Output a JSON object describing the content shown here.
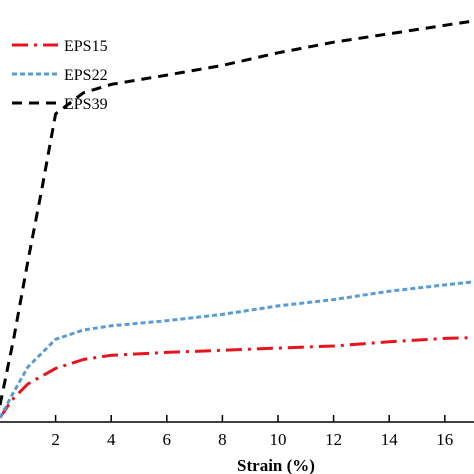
{
  "chart_data": {
    "type": "line",
    "xlabel": "Strain (%)",
    "ylabel": "",
    "xlim": [
      0,
      17
    ],
    "ylim": [
      0,
      1
    ],
    "xticks": [
      2,
      4,
      6,
      8,
      10,
      12,
      14,
      16
    ],
    "xtick_labels": [
      "2",
      "4",
      "6",
      "8",
      "10",
      "12",
      "14",
      "16"
    ],
    "grid": false,
    "legend_position": "top-left",
    "series": [
      {
        "name": "EPS15",
        "color": "#e8141c",
        "dash": "dash-dot",
        "points": [
          [
            0,
            0.01
          ],
          [
            0.4,
            0.05
          ],
          [
            1,
            0.09
          ],
          [
            2,
            0.127
          ],
          [
            3,
            0.148
          ],
          [
            4,
            0.158
          ],
          [
            6,
            0.165
          ],
          [
            8,
            0.17
          ],
          [
            10,
            0.175
          ],
          [
            12,
            0.18
          ],
          [
            14,
            0.19
          ],
          [
            16,
            0.198
          ],
          [
            17,
            0.2
          ]
        ]
      },
      {
        "name": "EPS22",
        "color": "#5b9bd5",
        "dash": "dotted",
        "points": [
          [
            0,
            0.01
          ],
          [
            0.4,
            0.06
          ],
          [
            1,
            0.13
          ],
          [
            2,
            0.196
          ],
          [
            3,
            0.218
          ],
          [
            4,
            0.228
          ],
          [
            6,
            0.24
          ],
          [
            8,
            0.255
          ],
          [
            10,
            0.275
          ],
          [
            12,
            0.29
          ],
          [
            14,
            0.31
          ],
          [
            16,
            0.325
          ],
          [
            17,
            0.332
          ]
        ]
      },
      {
        "name": "EPS39",
        "color": "#000000",
        "dash": "dashed",
        "points": [
          [
            0,
            0.04
          ],
          [
            0.5,
            0.2
          ],
          [
            1,
            0.38
          ],
          [
            1.5,
            0.55
          ],
          [
            2,
            0.73
          ],
          [
            3,
            0.78
          ],
          [
            4,
            0.8
          ],
          [
            6,
            0.822
          ],
          [
            8,
            0.845
          ],
          [
            10,
            0.875
          ],
          [
            12,
            0.9
          ],
          [
            14,
            0.92
          ],
          [
            16,
            0.94
          ],
          [
            17,
            0.95
          ]
        ]
      }
    ]
  }
}
